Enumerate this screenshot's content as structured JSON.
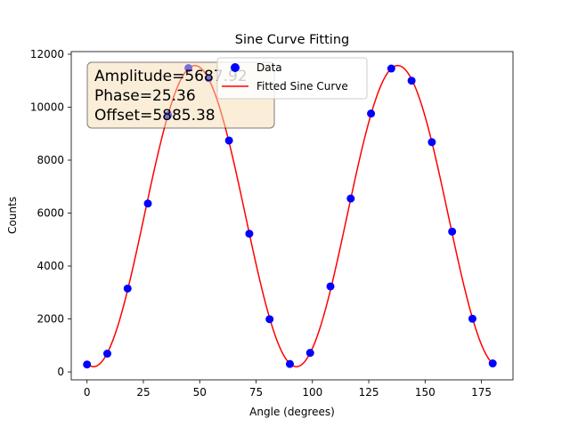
{
  "chart_data": {
    "type": "scatter",
    "title": "Sine Curve Fitting",
    "xlabel": "Angle (degrees)",
    "ylabel": "Counts",
    "xlim": [
      -7,
      189
    ],
    "ylim": [
      -300,
      12100
    ],
    "xticks": [
      0,
      25,
      50,
      75,
      100,
      125,
      150,
      175
    ],
    "yticks": [
      0,
      2000,
      4000,
      6000,
      8000,
      10000,
      12000
    ],
    "grid": false,
    "legend": {
      "placement": "top-center",
      "entries": [
        "Data",
        "Fitted Sine Curve"
      ]
    },
    "series": [
      {
        "name": "Data",
        "kind": "scatter",
        "color": "#0000ff",
        "x": [
          0,
          9,
          18,
          27,
          36,
          45,
          54,
          63,
          72,
          81,
          90,
          99,
          108,
          117,
          126,
          135,
          144,
          153,
          162,
          171,
          180
        ],
        "y": [
          280,
          690,
          3150,
          6360,
          9700,
          11480,
          11100,
          8740,
          5220,
          1990,
          300,
          720,
          3230,
          6550,
          9760,
          11460,
          11000,
          8680,
          5300,
          2010,
          320
        ]
      },
      {
        "name": "Fitted Sine Curve",
        "kind": "line",
        "color": "#ff0000",
        "amplitude": 5687.92,
        "phase": 25.36,
        "offset": 5885.38,
        "period": 90
      }
    ],
    "annotation": {
      "lines": [
        "Amplitude=5687.92",
        "Phase=25.36",
        "Offset=5885.38"
      ],
      "placement": "top-left",
      "box_color": "#f5deb3"
    }
  }
}
